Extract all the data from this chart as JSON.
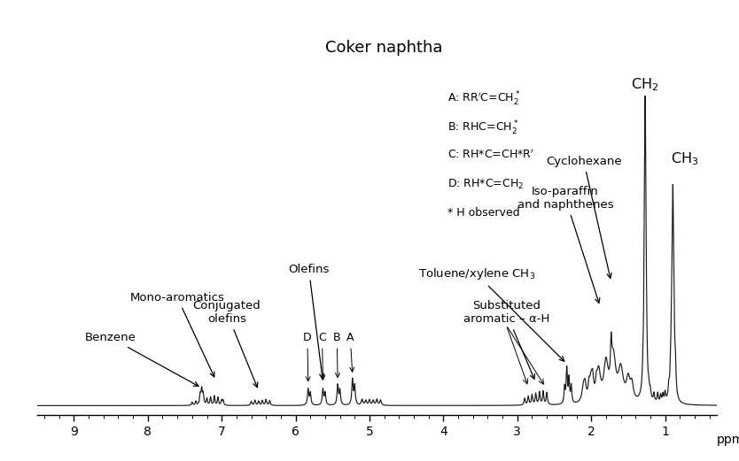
{
  "title": "Coker naphtha",
  "xlabel": "ppm",
  "xlim": [
    9.5,
    0.3
  ],
  "ylim": [
    -0.03,
    1.28
  ],
  "background_color": "#ffffff",
  "text_color": "#000000",
  "spectrum_color": "#1a1a1a",
  "xticks": [
    9,
    8,
    7,
    6,
    5,
    4,
    3,
    2,
    1
  ],
  "tick_fontsize": 10,
  "figsize": [
    8.34,
    5.21
  ],
  "dpi": 100
}
